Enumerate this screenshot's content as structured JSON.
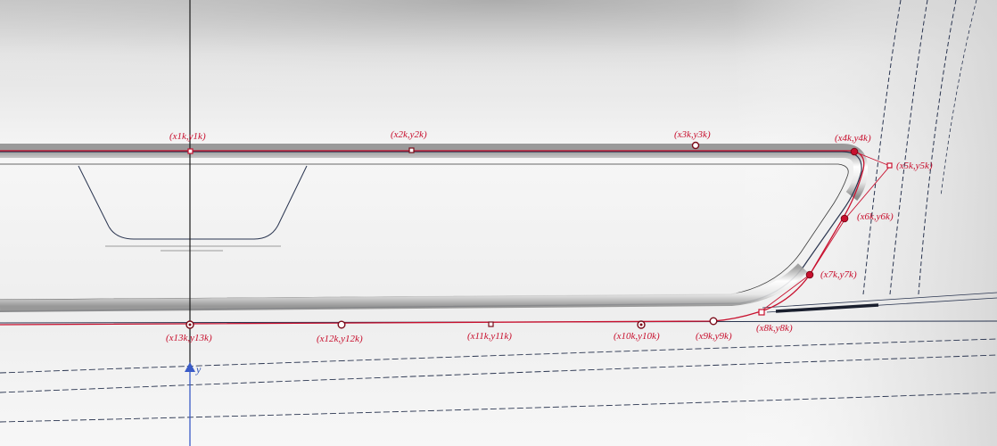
{
  "diagram": {
    "colors": {
      "curve": "#c8102e",
      "edge": "#2a3550",
      "axis": "#3a5bc7",
      "background_top": "#c9c9c9",
      "background_mid": "#f3f3f3"
    },
    "axis_label": "y",
    "control_points": [
      {
        "id": "1",
        "label": "(x1k,y1k)",
        "marker": "square"
      },
      {
        "id": "2",
        "label": "(x2k,y2k)",
        "marker": "square"
      },
      {
        "id": "3",
        "label": "(x3k,y3k)",
        "marker": "circle"
      },
      {
        "id": "4",
        "label": "(x4k,y4k)",
        "marker": "dot"
      },
      {
        "id": "5",
        "label": "(x5k,y5k)",
        "marker": "square"
      },
      {
        "id": "6",
        "label": "(x6k,y6k)",
        "marker": "dot"
      },
      {
        "id": "7",
        "label": "(x7k,y7k)",
        "marker": "dot"
      },
      {
        "id": "8",
        "label": "(x8k,y8k)",
        "marker": "square"
      },
      {
        "id": "9",
        "label": "(x9k,y9k)",
        "marker": "circle"
      },
      {
        "id": "10",
        "label": "(x10k,y10k)",
        "marker": "circle-dot"
      },
      {
        "id": "11",
        "label": "(x11k,y11k)",
        "marker": "square"
      },
      {
        "id": "12",
        "label": "(x12k,y12k)",
        "marker": "circle"
      },
      {
        "id": "13",
        "label": "(x13k,y13k)",
        "marker": "circle-dot"
      }
    ]
  }
}
